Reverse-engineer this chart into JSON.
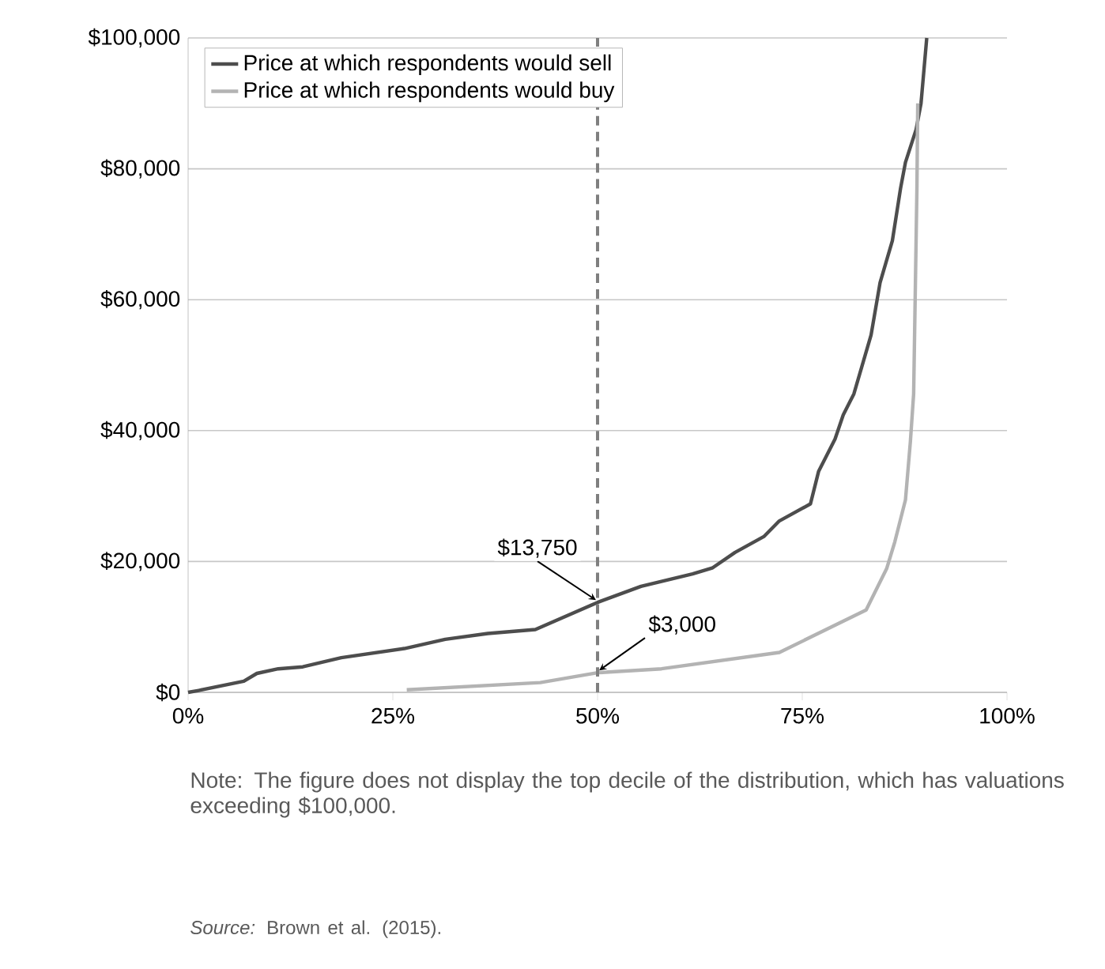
{
  "chart_data": {
    "type": "line",
    "xlim": [
      0,
      100
    ],
    "ylim": [
      0,
      100000
    ],
    "xticks": [
      {
        "value": 0,
        "label": "0%"
      },
      {
        "value": 25,
        "label": "25%"
      },
      {
        "value": 50,
        "label": "50%"
      },
      {
        "value": 75,
        "label": "75%"
      },
      {
        "value": 100,
        "label": "100%"
      }
    ],
    "yticks": [
      {
        "value": 0,
        "label": "$0"
      },
      {
        "value": 20000,
        "label": "$20,000"
      },
      {
        "value": 40000,
        "label": "$40,000"
      },
      {
        "value": 60000,
        "label": "$60,000"
      },
      {
        "value": 80000,
        "label": "$80,000"
      },
      {
        "value": 100000,
        "label": "$100,000"
      }
    ],
    "grid": "y",
    "legend": "top left",
    "marker": "none",
    "line_style": "solid",
    "series": [
      {
        "name": "Price at which respondents would sell",
        "color": "#4d4d4d",
        "x": [
          0,
          1.3,
          6.8,
          8.4,
          11,
          14,
          18.7,
          26.4,
          31.4,
          36.6,
          42.4,
          50,
          55.3,
          61.6,
          64,
          66.8,
          70.3,
          72.2,
          76,
          77,
          79,
          80,
          81.3,
          83.4,
          84.5,
          86,
          87,
          87.6,
          88.9,
          89.5,
          90.2
        ],
        "values": [
          0,
          300,
          1700,
          2900,
          3600,
          3900,
          5300,
          6700,
          8100,
          9000,
          9600,
          13750,
          16200,
          18100,
          19000,
          21400,
          23800,
          26200,
          28800,
          33800,
          38700,
          42400,
          45600,
          54600,
          62600,
          69000,
          77000,
          81000,
          86000,
          90000,
          100000
        ]
      },
      {
        "name": "Price at which respondents would buy",
        "color": "#b3b3b3",
        "x": [
          26.7,
          43,
          50,
          57.8,
          72.2,
          82.8,
          85.3,
          86.3,
          87.6,
          88.2,
          88.6,
          89,
          89.1
        ],
        "values": [
          400,
          1500,
          3000,
          3600,
          6100,
          12600,
          18900,
          23000,
          29400,
          38300,
          45600,
          77000,
          90000
        ]
      }
    ],
    "ref_lines": [
      {
        "axis": "x",
        "value": 50,
        "color": "#7f7f7f",
        "line_style": "dashed"
      }
    ],
    "annotations": [
      {
        "text": "$13,750",
        "x": 50,
        "y": 13750
      },
      {
        "text": "$3,000",
        "x": 50,
        "y": 3000
      },
      "Note: The figure does not display the top decile of the distribution, which has valuations exceeding $100,000.",
      "*Source:* Brown et al. (2015)."
    ]
  }
}
